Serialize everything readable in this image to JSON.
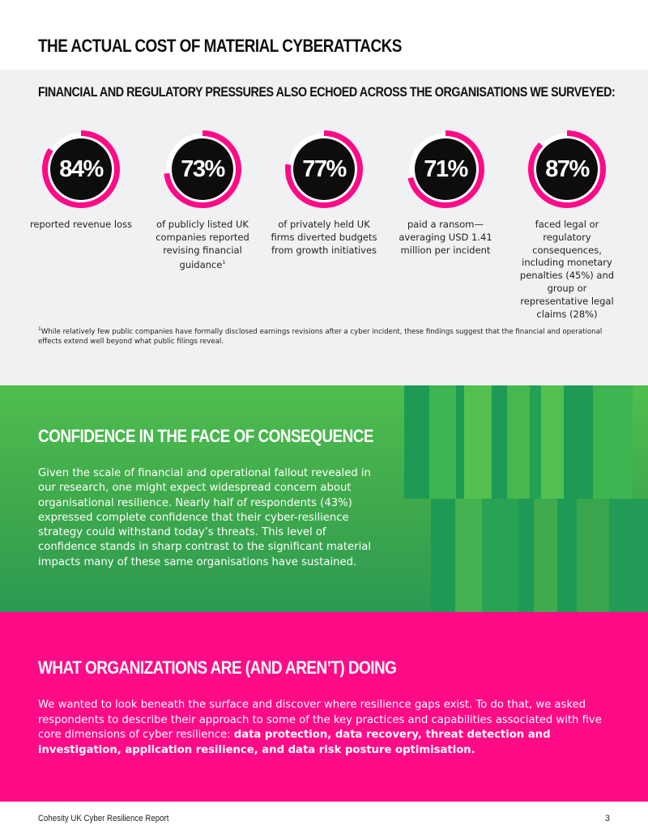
{
  "header": {
    "title": "THE ACTUAL COST OF MATERIAL CYBERATTACKS"
  },
  "stats": {
    "heading": "FINANCIAL AND REGULATORY PRESSURES ALSO ECHOED ACROSS THE ORGANISATIONS WE SURVEYED:",
    "ring_color": "#ff0a87",
    "items": [
      {
        "value": "84%",
        "fraction": 0.84,
        "description": "reported revenue loss"
      },
      {
        "value": "73%",
        "fraction": 0.73,
        "description": "of publicly listed UK companies reported revising financial guidance",
        "footnote_marker": "1"
      },
      {
        "value": "77%",
        "fraction": 0.77,
        "description": "of privately held UK firms diverted budgets from growth initiatives"
      },
      {
        "value": "71%",
        "fraction": 0.71,
        "description": "paid a ransom—averaging USD 1.41 million per incident"
      },
      {
        "value": "87%",
        "fraction": 0.87,
        "description": "faced legal or regulatory consequences, including monetary penalties (45%) and group or representative legal claims (28%)"
      }
    ],
    "footnote_marker": "1",
    "footnote": "While relatively few public companies have formally disclosed earnings revisions after a cyber incident, these findings suggest that the financial and operational effects extend well beyond what public filings reveal."
  },
  "confidence": {
    "heading": "CONFIDENCE IN THE FACE OF CONSEQUENCE",
    "body": "Given the scale of financial and operational fallout revealed in our research, one might expect widespread concern about organisational resilience. Nearly half of respondents (43%) expressed complete confidence that their cyber-resilience strategy could withstand today’s threats. This level of confidence stands in sharp contrast to the significant material impacts many of these same organisations have sustained.",
    "bg_color": "#4fbe4e"
  },
  "practices": {
    "heading": "WHAT ORGANIZATIONS ARE (AND AREN’T) DOING",
    "body_intro": "We wanted to look beneath the surface and discover where resilience gaps exist. To do that, we asked respondents to describe their approach to some of the key practices and capabilities associated with five core dimensions of cyber resilience: ",
    "body_bold": "data protection, data recovery, threat detection and investigation, application resilience, and data risk posture optimisation.",
    "bg_color": "#ff0a87"
  },
  "footer": {
    "report_name": "Cohesity UK Cyber Resilience Report",
    "page_number": "3"
  }
}
